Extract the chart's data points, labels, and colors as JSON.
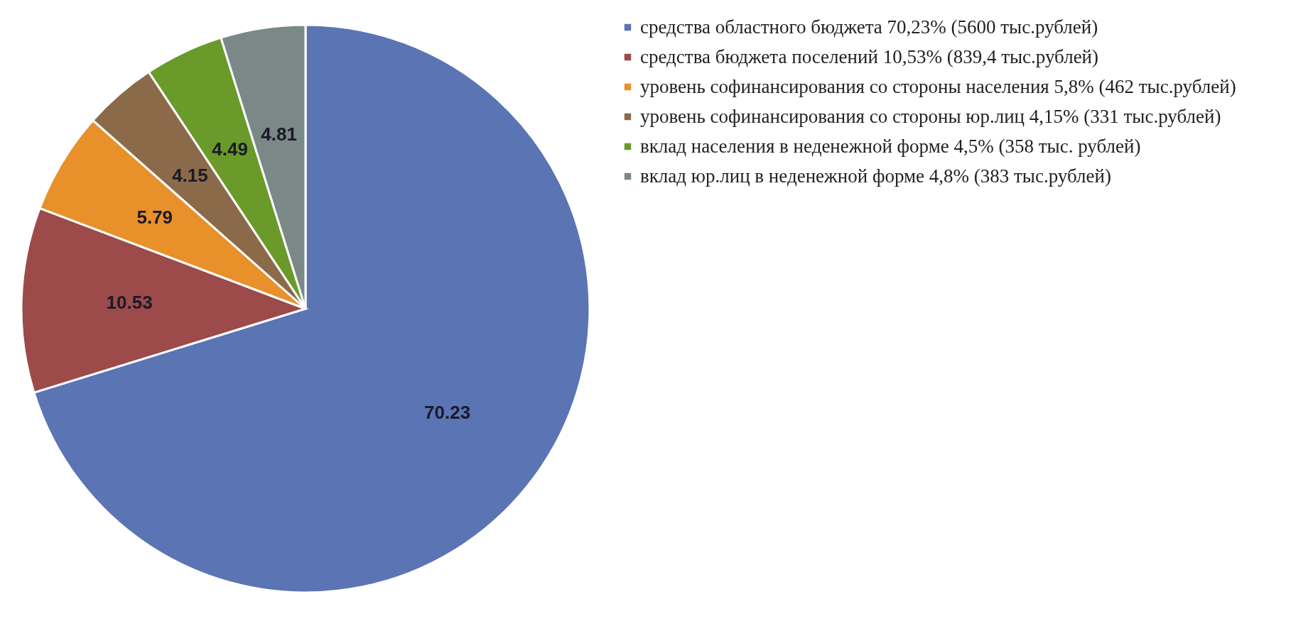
{
  "chart_data": {
    "type": "pie",
    "categories": [
      "средства областного бюджета 70,23% (5600 тыс.рублей)",
      "средства бюджета поселений 10,53% (839,4 тыс.рублей)",
      "уровень софинансирования со стороны населения 5,8% (462 тыс.рублей)",
      "уровень софинансирования со стороны юр.лиц 4,15% (331 тыс.рублей)",
      "вклад населения в неденежной форме 4,5% (358 тыс. рублей)",
      "вклад юр.лиц в неденежной форме 4,8% (383 тыс.рублей)"
    ],
    "values": [
      70.23,
      10.53,
      5.79,
      4.15,
      4.49,
      4.81
    ],
    "colors": [
      "#5b74b4",
      "#9c4a4a",
      "#e8902a",
      "#8b6a4a",
      "#6a9a2a",
      "#7a8888"
    ],
    "data_labels": true,
    "legend": "right"
  }
}
